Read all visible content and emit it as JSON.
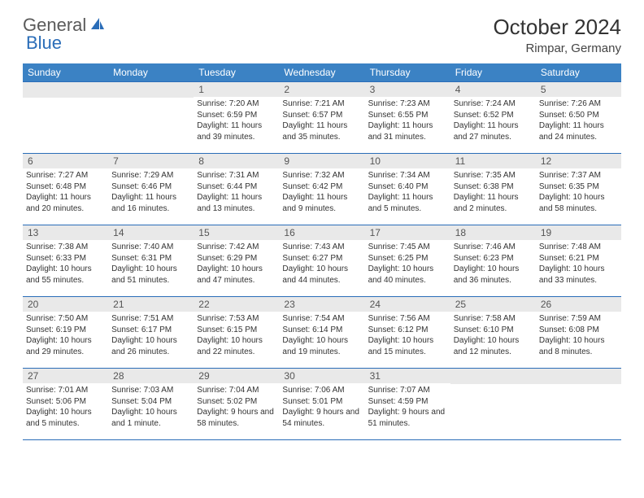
{
  "logo": {
    "part1": "General",
    "part2": "Blue"
  },
  "title": "October 2024",
  "location": "Rimpar, Germany",
  "colors": {
    "header_bg": "#3b82c4",
    "header_text": "#ffffff",
    "border": "#2a6db8",
    "daynum_bg": "#e9e9e9",
    "logo_gray": "#5a5a5a",
    "logo_blue": "#2a6db8"
  },
  "typography": {
    "title_fontsize": 26,
    "location_fontsize": 15,
    "header_fontsize": 12,
    "body_fontsize": 10
  },
  "day_headers": [
    "Sunday",
    "Monday",
    "Tuesday",
    "Wednesday",
    "Thursday",
    "Friday",
    "Saturday"
  ],
  "weeks": [
    [
      {
        "blank": true
      },
      {
        "blank": true
      },
      {
        "num": "1",
        "sunrise": "Sunrise: 7:20 AM",
        "sunset": "Sunset: 6:59 PM",
        "daylight": "Daylight: 11 hours and 39 minutes."
      },
      {
        "num": "2",
        "sunrise": "Sunrise: 7:21 AM",
        "sunset": "Sunset: 6:57 PM",
        "daylight": "Daylight: 11 hours and 35 minutes."
      },
      {
        "num": "3",
        "sunrise": "Sunrise: 7:23 AM",
        "sunset": "Sunset: 6:55 PM",
        "daylight": "Daylight: 11 hours and 31 minutes."
      },
      {
        "num": "4",
        "sunrise": "Sunrise: 7:24 AM",
        "sunset": "Sunset: 6:52 PM",
        "daylight": "Daylight: 11 hours and 27 minutes."
      },
      {
        "num": "5",
        "sunrise": "Sunrise: 7:26 AM",
        "sunset": "Sunset: 6:50 PM",
        "daylight": "Daylight: 11 hours and 24 minutes."
      }
    ],
    [
      {
        "num": "6",
        "sunrise": "Sunrise: 7:27 AM",
        "sunset": "Sunset: 6:48 PM",
        "daylight": "Daylight: 11 hours and 20 minutes."
      },
      {
        "num": "7",
        "sunrise": "Sunrise: 7:29 AM",
        "sunset": "Sunset: 6:46 PM",
        "daylight": "Daylight: 11 hours and 16 minutes."
      },
      {
        "num": "8",
        "sunrise": "Sunrise: 7:31 AM",
        "sunset": "Sunset: 6:44 PM",
        "daylight": "Daylight: 11 hours and 13 minutes."
      },
      {
        "num": "9",
        "sunrise": "Sunrise: 7:32 AM",
        "sunset": "Sunset: 6:42 PM",
        "daylight": "Daylight: 11 hours and 9 minutes."
      },
      {
        "num": "10",
        "sunrise": "Sunrise: 7:34 AM",
        "sunset": "Sunset: 6:40 PM",
        "daylight": "Daylight: 11 hours and 5 minutes."
      },
      {
        "num": "11",
        "sunrise": "Sunrise: 7:35 AM",
        "sunset": "Sunset: 6:38 PM",
        "daylight": "Daylight: 11 hours and 2 minutes."
      },
      {
        "num": "12",
        "sunrise": "Sunrise: 7:37 AM",
        "sunset": "Sunset: 6:35 PM",
        "daylight": "Daylight: 10 hours and 58 minutes."
      }
    ],
    [
      {
        "num": "13",
        "sunrise": "Sunrise: 7:38 AM",
        "sunset": "Sunset: 6:33 PM",
        "daylight": "Daylight: 10 hours and 55 minutes."
      },
      {
        "num": "14",
        "sunrise": "Sunrise: 7:40 AM",
        "sunset": "Sunset: 6:31 PM",
        "daylight": "Daylight: 10 hours and 51 minutes."
      },
      {
        "num": "15",
        "sunrise": "Sunrise: 7:42 AM",
        "sunset": "Sunset: 6:29 PM",
        "daylight": "Daylight: 10 hours and 47 minutes."
      },
      {
        "num": "16",
        "sunrise": "Sunrise: 7:43 AM",
        "sunset": "Sunset: 6:27 PM",
        "daylight": "Daylight: 10 hours and 44 minutes."
      },
      {
        "num": "17",
        "sunrise": "Sunrise: 7:45 AM",
        "sunset": "Sunset: 6:25 PM",
        "daylight": "Daylight: 10 hours and 40 minutes."
      },
      {
        "num": "18",
        "sunrise": "Sunrise: 7:46 AM",
        "sunset": "Sunset: 6:23 PM",
        "daylight": "Daylight: 10 hours and 36 minutes."
      },
      {
        "num": "19",
        "sunrise": "Sunrise: 7:48 AM",
        "sunset": "Sunset: 6:21 PM",
        "daylight": "Daylight: 10 hours and 33 minutes."
      }
    ],
    [
      {
        "num": "20",
        "sunrise": "Sunrise: 7:50 AM",
        "sunset": "Sunset: 6:19 PM",
        "daylight": "Daylight: 10 hours and 29 minutes."
      },
      {
        "num": "21",
        "sunrise": "Sunrise: 7:51 AM",
        "sunset": "Sunset: 6:17 PM",
        "daylight": "Daylight: 10 hours and 26 minutes."
      },
      {
        "num": "22",
        "sunrise": "Sunrise: 7:53 AM",
        "sunset": "Sunset: 6:15 PM",
        "daylight": "Daylight: 10 hours and 22 minutes."
      },
      {
        "num": "23",
        "sunrise": "Sunrise: 7:54 AM",
        "sunset": "Sunset: 6:14 PM",
        "daylight": "Daylight: 10 hours and 19 minutes."
      },
      {
        "num": "24",
        "sunrise": "Sunrise: 7:56 AM",
        "sunset": "Sunset: 6:12 PM",
        "daylight": "Daylight: 10 hours and 15 minutes."
      },
      {
        "num": "25",
        "sunrise": "Sunrise: 7:58 AM",
        "sunset": "Sunset: 6:10 PM",
        "daylight": "Daylight: 10 hours and 12 minutes."
      },
      {
        "num": "26",
        "sunrise": "Sunrise: 7:59 AM",
        "sunset": "Sunset: 6:08 PM",
        "daylight": "Daylight: 10 hours and 8 minutes."
      }
    ],
    [
      {
        "num": "27",
        "sunrise": "Sunrise: 7:01 AM",
        "sunset": "Sunset: 5:06 PM",
        "daylight": "Daylight: 10 hours and 5 minutes."
      },
      {
        "num": "28",
        "sunrise": "Sunrise: 7:03 AM",
        "sunset": "Sunset: 5:04 PM",
        "daylight": "Daylight: 10 hours and 1 minute."
      },
      {
        "num": "29",
        "sunrise": "Sunrise: 7:04 AM",
        "sunset": "Sunset: 5:02 PM",
        "daylight": "Daylight: 9 hours and 58 minutes."
      },
      {
        "num": "30",
        "sunrise": "Sunrise: 7:06 AM",
        "sunset": "Sunset: 5:01 PM",
        "daylight": "Daylight: 9 hours and 54 minutes."
      },
      {
        "num": "31",
        "sunrise": "Sunrise: 7:07 AM",
        "sunset": "Sunset: 4:59 PM",
        "daylight": "Daylight: 9 hours and 51 minutes."
      },
      {
        "blank": true
      },
      {
        "blank": true
      }
    ]
  ]
}
